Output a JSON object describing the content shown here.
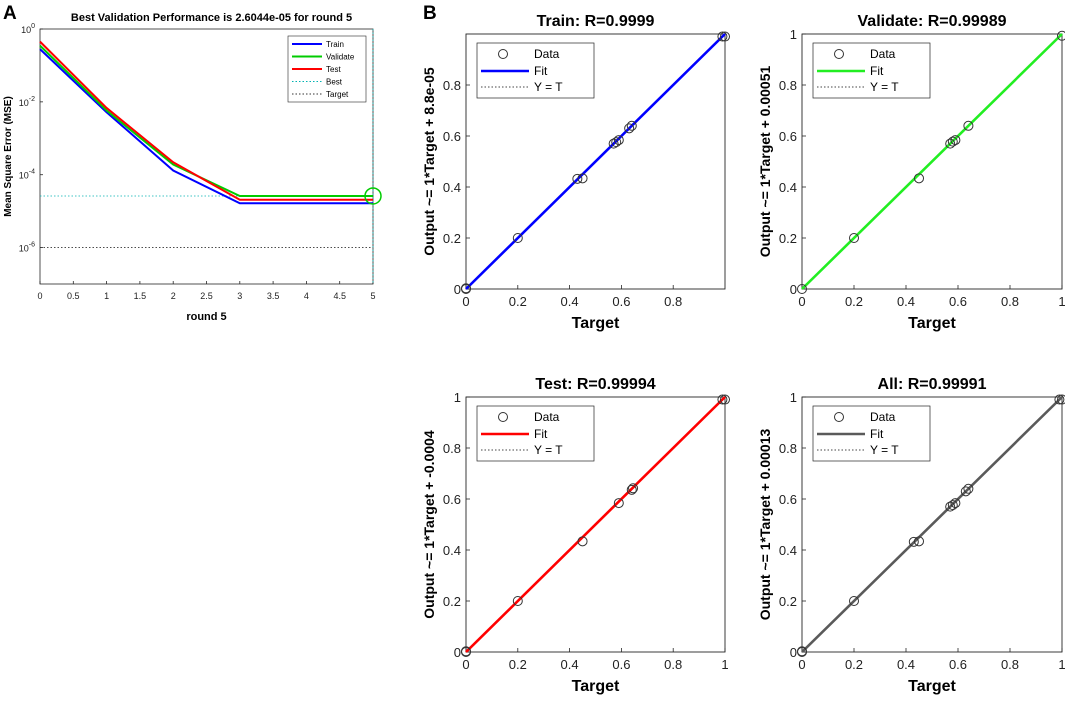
{
  "panel_labels": {
    "a": "A",
    "b": "B"
  },
  "chart_data": [
    {
      "id": "performance",
      "type": "line",
      "title": "Best Validation Performance is 2.6044e-05 for round 5",
      "xlabel": "round 5",
      "ylabel": "Mean Square Error (MSE)",
      "yscale": "log",
      "xlim": [
        0,
        5
      ],
      "ylim_exponents": [
        -7,
        0
      ],
      "x_ticks": [
        "0",
        "0.5",
        "1",
        "1.5",
        "2",
        "2.5",
        "3",
        "3.5",
        "4",
        "4.5",
        "5"
      ],
      "y_ticks": [
        {
          "base": "10",
          "exp": "0"
        },
        {
          "base": "10",
          "exp": "-2"
        },
        {
          "base": "10",
          "exp": "-4"
        },
        {
          "base": "10",
          "exp": "-6"
        }
      ],
      "x": [
        0,
        1,
        2,
        3,
        4,
        5
      ],
      "series": [
        {
          "name": "Train",
          "color": "#0000ff",
          "values": [
            0.28,
            0.0052,
            0.00013,
            1.65e-05,
            1.65e-05,
            1.65e-05
          ]
        },
        {
          "name": "Validate",
          "color": "#00cc00",
          "values": [
            0.35,
            0.0058,
            0.00019,
            2.6e-05,
            2.6e-05,
            2.6e-05
          ]
        },
        {
          "name": "Test",
          "color": "#ff0000",
          "values": [
            0.45,
            0.0068,
            0.00022,
            2.05e-05,
            2.05e-05,
            2.05e-05
          ]
        }
      ],
      "best": {
        "name": "Best",
        "x": 5,
        "y": 2.6044e-05,
        "color": "#00cc00"
      },
      "target": {
        "name": "Target",
        "y": 1e-06
      },
      "legend": [
        "Train",
        "Validate",
        "Test",
        "Best",
        "Target"
      ]
    },
    {
      "id": "train",
      "type": "scatter",
      "title": "Train: R=0.9999",
      "xlabel": "Target",
      "ylabel": "Output ~= 1*Target + 8.8e-05",
      "xlim": [
        0,
        1
      ],
      "ylim": [
        0,
        1
      ],
      "x_ticks": [
        "0",
        "0.2",
        "0.4",
        "0.6",
        "0.8"
      ],
      "y_ticks": [
        "0",
        "0.2",
        "0.4",
        "0.6",
        "0.8"
      ],
      "fit_color": "#0000ff",
      "points": [
        [
          0.0,
          0.0
        ],
        [
          0.0,
          0.003
        ],
        [
          0.2,
          0.2
        ],
        [
          0.43,
          0.432
        ],
        [
          0.45,
          0.434
        ],
        [
          0.57,
          0.57
        ],
        [
          0.58,
          0.576
        ],
        [
          0.59,
          0.584
        ],
        [
          0.63,
          0.63
        ],
        [
          0.64,
          0.64
        ],
        [
          0.99,
          0.99
        ],
        [
          1.0,
          0.99
        ]
      ],
      "legend": [
        "Data",
        "Fit",
        "Y = T"
      ]
    },
    {
      "id": "validate",
      "type": "scatter",
      "title": "Validate: R=0.99989",
      "xlabel": "Target",
      "ylabel": "Output ~= 1*Target + 0.00051",
      "xlim": [
        0,
        1
      ],
      "ylim": [
        0,
        1
      ],
      "x_ticks": [
        "0",
        "0.2",
        "0.4",
        "0.6",
        "0.8",
        "1"
      ],
      "y_ticks": [
        "0",
        "0.2",
        "0.4",
        "0.6",
        "0.8",
        "1"
      ],
      "fit_color": "#22ee22",
      "points": [
        [
          0.0,
          0.0
        ],
        [
          0.2,
          0.2
        ],
        [
          0.45,
          0.434
        ],
        [
          0.57,
          0.57
        ],
        [
          0.58,
          0.578
        ],
        [
          0.59,
          0.584
        ],
        [
          0.64,
          0.64
        ],
        [
          1.0,
          0.993
        ]
      ],
      "legend": [
        "Data",
        "Fit",
        "Y = T"
      ]
    },
    {
      "id": "test",
      "type": "scatter",
      "title": "Test: R=0.99994",
      "xlabel": "Target",
      "ylabel": "Output ~= 1*Target + -0.0004",
      "xlim": [
        0,
        1
      ],
      "ylim": [
        0,
        1
      ],
      "x_ticks": [
        "0",
        "0.2",
        "0.4",
        "0.6",
        "0.8",
        "1"
      ],
      "y_ticks": [
        "0",
        "0.2",
        "0.4",
        "0.6",
        "0.8",
        "1"
      ],
      "fit_color": "#ff0000",
      "points": [
        [
          0.0,
          0.0
        ],
        [
          0.0,
          0.003
        ],
        [
          0.2,
          0.2
        ],
        [
          0.45,
          0.434
        ],
        [
          0.59,
          0.584
        ],
        [
          0.64,
          0.636
        ],
        [
          0.645,
          0.642
        ],
        [
          0.99,
          0.99
        ],
        [
          1.0,
          0.99
        ]
      ],
      "legend": [
        "Data",
        "Fit",
        "Y = T"
      ]
    },
    {
      "id": "all",
      "type": "scatter",
      "title": "All: R=0.99991",
      "xlabel": "Target",
      "ylabel": "Output ~= 1*Target + 0.00013",
      "xlim": [
        0,
        1
      ],
      "ylim": [
        0,
        1
      ],
      "x_ticks": [
        "0",
        "0.2",
        "0.4",
        "0.6",
        "0.8",
        "1"
      ],
      "y_ticks": [
        "0",
        "0.2",
        "0.4",
        "0.6",
        "0.8",
        "1"
      ],
      "fit_color": "#5a5a5a",
      "points": [
        [
          0.0,
          0.0
        ],
        [
          0.0,
          0.003
        ],
        [
          0.2,
          0.2
        ],
        [
          0.43,
          0.432
        ],
        [
          0.45,
          0.434
        ],
        [
          0.57,
          0.57
        ],
        [
          0.58,
          0.576
        ],
        [
          0.59,
          0.584
        ],
        [
          0.63,
          0.63
        ],
        [
          0.64,
          0.64
        ],
        [
          0.99,
          0.99
        ],
        [
          1.0,
          0.99
        ]
      ],
      "legend": [
        "Data",
        "Fit",
        "Y = T"
      ]
    }
  ]
}
